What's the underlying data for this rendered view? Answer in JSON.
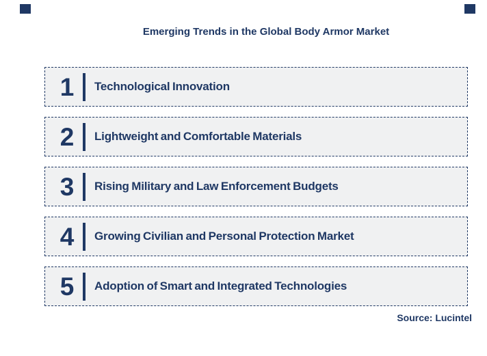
{
  "title": "Emerging Trends in the Global Body Armor Market",
  "source": "Source: Lucintel",
  "colors": {
    "navy": "#1F3864",
    "box_fill": "#F0F1F2",
    "background": "#FFFFFF"
  },
  "trends": [
    {
      "number": "1",
      "label": "Technological Innovation"
    },
    {
      "number": "2",
      "label": "Lightweight and Comfortable Materials"
    },
    {
      "number": "3",
      "label": "Rising Military and Law Enforcement Budgets"
    },
    {
      "number": "4",
      "label": "Growing Civilian and Personal Protection Market"
    },
    {
      "number": "5",
      "label": "Adoption of Smart and Integrated Technologies"
    }
  ]
}
